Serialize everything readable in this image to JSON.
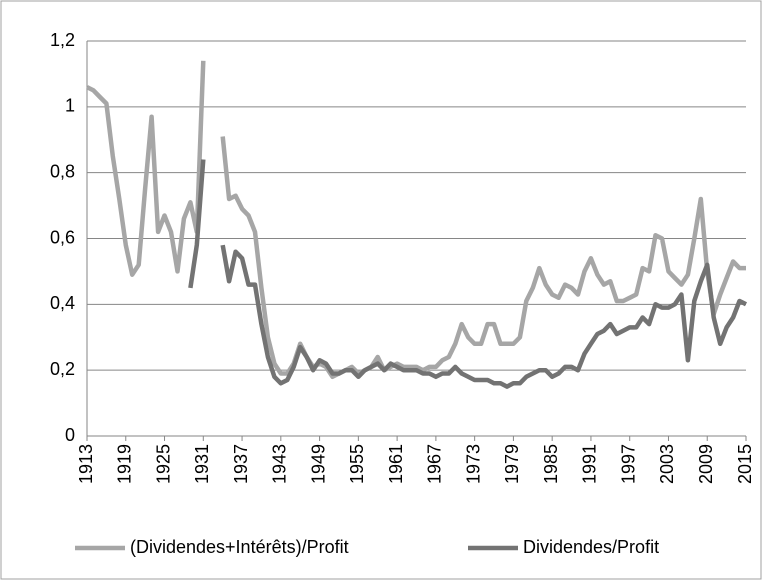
{
  "chart_data": {
    "type": "line",
    "x": [
      1913,
      1914,
      1915,
      1916,
      1917,
      1918,
      1919,
      1920,
      1921,
      1922,
      1923,
      1924,
      1925,
      1926,
      1927,
      1928,
      1929,
      1930,
      1931,
      1932,
      1933,
      1934,
      1935,
      1936,
      1937,
      1938,
      1939,
      1940,
      1941,
      1942,
      1943,
      1944,
      1945,
      1946,
      1947,
      1948,
      1949,
      1950,
      1951,
      1952,
      1953,
      1954,
      1955,
      1956,
      1957,
      1958,
      1959,
      1960,
      1961,
      1962,
      1963,
      1964,
      1965,
      1966,
      1967,
      1968,
      1969,
      1970,
      1971,
      1972,
      1973,
      1974,
      1975,
      1976,
      1977,
      1978,
      1979,
      1980,
      1981,
      1982,
      1983,
      1984,
      1985,
      1986,
      1987,
      1988,
      1989,
      1990,
      1991,
      1992,
      1993,
      1994,
      1995,
      1996,
      1997,
      1998,
      1999,
      2000,
      2001,
      2002,
      2003,
      2004,
      2005,
      2006,
      2007,
      2008,
      2009,
      2010,
      2011,
      2012,
      2013,
      2014,
      2015
    ],
    "series": [
      {
        "name": "(Dividendes+Intérêts)/Profit",
        "color": "#a6a6a6",
        "values": [
          1.06,
          1.05,
          1.03,
          1.01,
          0.85,
          0.72,
          0.58,
          0.49,
          0.52,
          0.75,
          0.97,
          0.62,
          0.67,
          0.62,
          0.5,
          0.66,
          0.71,
          0.62,
          1.14,
          null,
          null,
          0.91,
          0.72,
          0.73,
          0.69,
          0.67,
          0.62,
          0.45,
          0.3,
          0.22,
          0.19,
          0.19,
          0.22,
          0.28,
          0.24,
          0.21,
          0.22,
          0.21,
          0.18,
          0.19,
          0.2,
          0.21,
          0.19,
          0.2,
          0.21,
          0.24,
          0.2,
          0.21,
          0.22,
          0.21,
          0.21,
          0.21,
          0.2,
          0.21,
          0.21,
          0.23,
          0.24,
          0.28,
          0.34,
          0.3,
          0.28,
          0.28,
          0.34,
          0.34,
          0.28,
          0.28,
          0.28,
          0.3,
          0.41,
          0.45,
          0.51,
          0.46,
          0.43,
          0.42,
          0.46,
          0.45,
          0.43,
          0.5,
          0.54,
          0.49,
          0.46,
          0.47,
          0.41,
          0.41,
          0.42,
          0.43,
          0.51,
          0.5,
          0.61,
          0.6,
          0.5,
          0.48,
          0.46,
          0.49,
          0.6,
          0.72,
          0.5,
          0.37,
          0.43,
          0.48,
          0.53,
          0.51,
          0.51
        ]
      },
      {
        "name": "Dividendes/Profit",
        "color": "#737373",
        "values": [
          null,
          null,
          null,
          null,
          null,
          null,
          null,
          null,
          null,
          null,
          null,
          null,
          null,
          null,
          null,
          null,
          0.45,
          0.58,
          0.84,
          null,
          null,
          0.58,
          0.47,
          0.56,
          0.54,
          0.46,
          0.46,
          0.34,
          0.24,
          0.18,
          0.16,
          0.17,
          0.21,
          0.27,
          0.24,
          0.2,
          0.23,
          0.22,
          0.19,
          0.19,
          0.2,
          0.2,
          0.18,
          0.2,
          0.21,
          0.22,
          0.2,
          0.22,
          0.21,
          0.2,
          0.2,
          0.2,
          0.19,
          0.19,
          0.18,
          0.19,
          0.19,
          0.21,
          0.19,
          0.18,
          0.17,
          0.17,
          0.17,
          0.16,
          0.16,
          0.15,
          0.16,
          0.16,
          0.18,
          0.19,
          0.2,
          0.2,
          0.18,
          0.19,
          0.21,
          0.21,
          0.2,
          0.25,
          0.28,
          0.31,
          0.32,
          0.34,
          0.31,
          0.32,
          0.33,
          0.33,
          0.36,
          0.34,
          0.4,
          0.39,
          0.39,
          0.4,
          0.43,
          0.23,
          0.41,
          0.47,
          0.52,
          0.36,
          0.28,
          0.33,
          0.36,
          0.41,
          0.4
        ]
      }
    ],
    "xlim": [
      1913,
      2015
    ],
    "xticks": [
      1913,
      1919,
      1925,
      1931,
      1937,
      1943,
      1949,
      1955,
      1961,
      1967,
      1973,
      1979,
      1985,
      1991,
      1997,
      2003,
      2009,
      2015
    ],
    "ylim": [
      0,
      1.2
    ],
    "yticks": [
      0,
      {
        "value": 0.2,
        "label": "0,2"
      },
      {
        "value": 0.4,
        "label": "0,4"
      },
      {
        "value": 0.6,
        "label": "0,6"
      },
      {
        "value": 0.8,
        "label": "0,8"
      },
      1,
      {
        "value": 1.2,
        "label": "1,2"
      }
    ],
    "grid": true,
    "legend": "bottom"
  }
}
